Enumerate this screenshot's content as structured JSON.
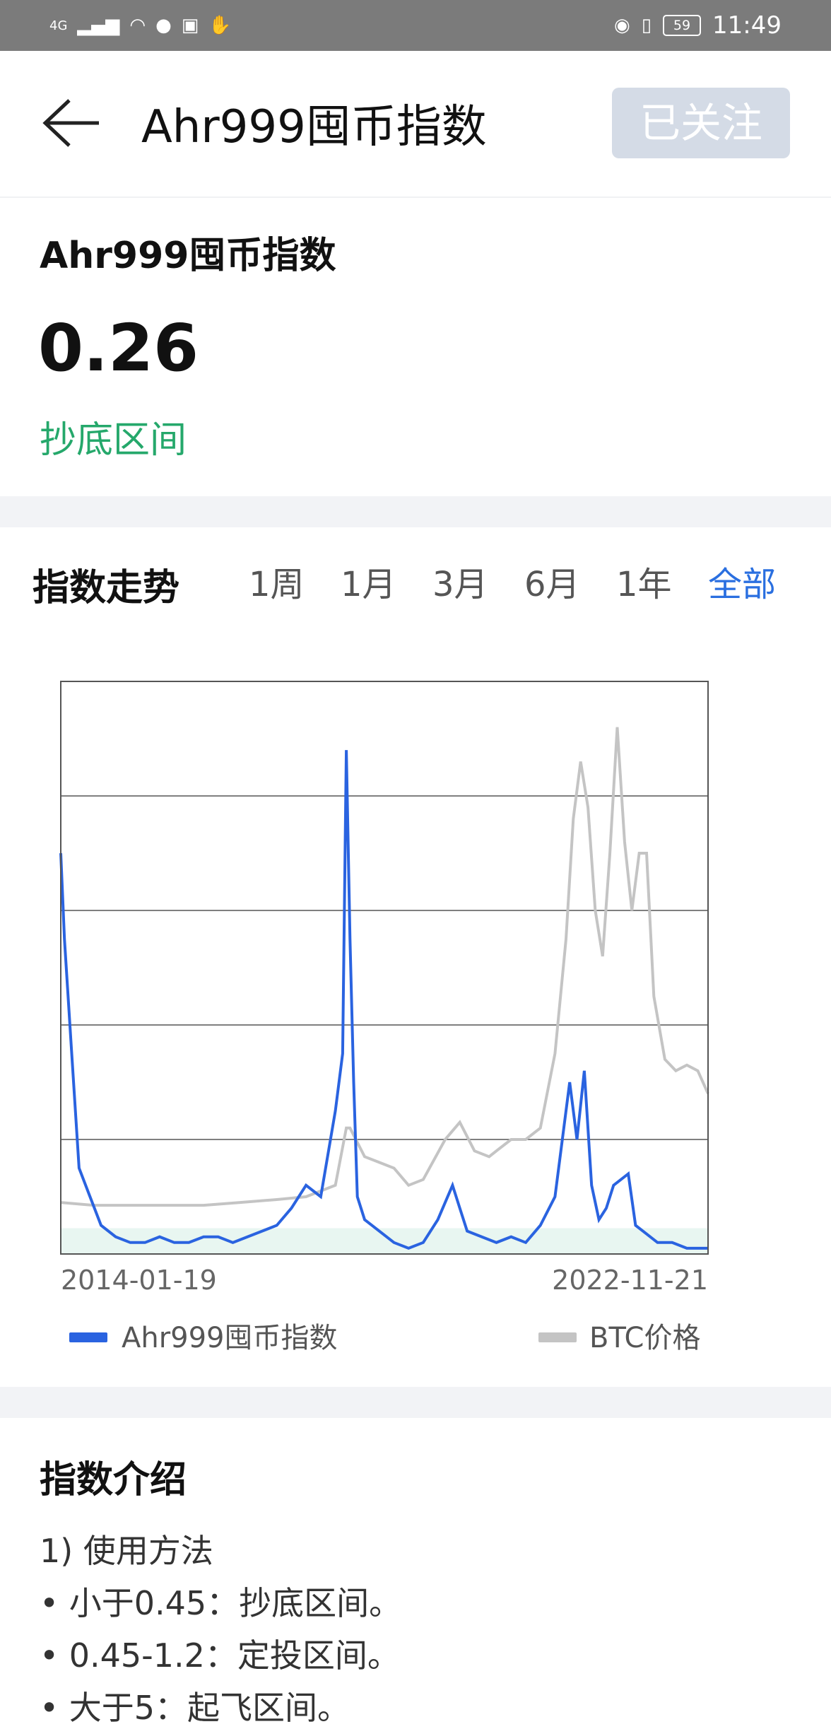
{
  "status_bar": {
    "network": "4G",
    "time": "11:49",
    "battery": "59"
  },
  "header": {
    "title": "Ahr999囤币指数",
    "follow_label": "已关注"
  },
  "summary": {
    "title": "Ahr999囤币指数",
    "value": "0.26",
    "zone": "抄底区间"
  },
  "trend": {
    "title": "指数走势",
    "tabs": [
      {
        "label": "1周",
        "active": false
      },
      {
        "label": "1月",
        "active": false
      },
      {
        "label": "3月",
        "active": false
      },
      {
        "label": "6月",
        "active": false
      },
      {
        "label": "1年",
        "active": false
      },
      {
        "label": "全部",
        "active": true
      }
    ]
  },
  "chart_data": {
    "type": "line",
    "x_start": "2014-01-19",
    "x_end": "2022-11-21",
    "x_ticks": [
      "2014-01-19",
      "2022-11-21"
    ],
    "grid": true,
    "gridlines": 4,
    "legend_position": "bottom",
    "series": [
      {
        "name": "Ahr999囤币指数",
        "color": "#2a63e0",
        "x": [
          2014.05,
          2014.1,
          2014.2,
          2014.3,
          2014.45,
          2014.6,
          2014.8,
          2015.0,
          2015.2,
          2015.4,
          2015.6,
          2015.8,
          2016.0,
          2016.2,
          2016.4,
          2016.6,
          2016.8,
          2017.0,
          2017.2,
          2017.4,
          2017.6,
          2017.8,
          2017.9,
          2017.95,
          2018.0,
          2018.05,
          2018.1,
          2018.2,
          2018.4,
          2018.6,
          2018.8,
          2019.0,
          2019.2,
          2019.4,
          2019.5,
          2019.6,
          2019.8,
          2020.0,
          2020.2,
          2020.4,
          2020.6,
          2020.8,
          2021.0,
          2021.1,
          2021.2,
          2021.3,
          2021.4,
          2021.5,
          2021.6,
          2021.8,
          2021.9,
          2022.0,
          2022.2,
          2022.4,
          2022.6,
          2022.8,
          2022.89
        ],
        "y": [
          0.7,
          0.55,
          0.35,
          0.15,
          0.1,
          0.05,
          0.03,
          0.02,
          0.02,
          0.03,
          0.02,
          0.02,
          0.03,
          0.03,
          0.02,
          0.03,
          0.04,
          0.05,
          0.08,
          0.12,
          0.1,
          0.25,
          0.35,
          0.88,
          0.55,
          0.3,
          0.1,
          0.06,
          0.04,
          0.02,
          0.01,
          0.02,
          0.06,
          0.12,
          0.08,
          0.04,
          0.03,
          0.02,
          0.03,
          0.02,
          0.05,
          0.1,
          0.3,
          0.2,
          0.32,
          0.12,
          0.06,
          0.08,
          0.12,
          0.14,
          0.05,
          0.04,
          0.02,
          0.02,
          0.01,
          0.01,
          0.01
        ]
      },
      {
        "name": "BTC价格",
        "color": "#c4c4c4",
        "x": [
          2014.05,
          2014.5,
          2015.0,
          2015.5,
          2016.0,
          2016.5,
          2017.0,
          2017.4,
          2017.8,
          2017.95,
          2018.0,
          2018.2,
          2018.4,
          2018.6,
          2018.8,
          2019.0,
          2019.3,
          2019.5,
          2019.7,
          2019.9,
          2020.0,
          2020.2,
          2020.4,
          2020.6,
          2020.8,
          2020.95,
          2021.05,
          2021.15,
          2021.25,
          2021.35,
          2021.45,
          2021.55,
          2021.65,
          2021.75,
          2021.85,
          2021.95,
          2022.05,
          2022.15,
          2022.3,
          2022.45,
          2022.6,
          2022.75,
          2022.89
        ],
        "y": [
          0.09,
          0.085,
          0.085,
          0.085,
          0.085,
          0.09,
          0.095,
          0.1,
          0.12,
          0.22,
          0.22,
          0.17,
          0.16,
          0.15,
          0.12,
          0.13,
          0.2,
          0.23,
          0.18,
          0.17,
          0.18,
          0.2,
          0.2,
          0.22,
          0.35,
          0.55,
          0.76,
          0.86,
          0.78,
          0.6,
          0.52,
          0.7,
          0.92,
          0.72,
          0.6,
          0.7,
          0.7,
          0.45,
          0.34,
          0.32,
          0.33,
          0.32,
          0.28
        ]
      }
    ],
    "shaded_band": {
      "y_from": 0.0,
      "y_to": 0.045,
      "color": "#e8f6f1"
    },
    "ylim": [
      0,
      1
    ],
    "xlim": [
      2014.05,
      2022.89
    ]
  },
  "intro": {
    "title": "指数介绍",
    "lines": [
      "1) 使用方法",
      "• 小于0.45：抄底区间。",
      "• 0.45-1.2：定投区间。",
      "• 大于5：起飞区间。"
    ]
  }
}
